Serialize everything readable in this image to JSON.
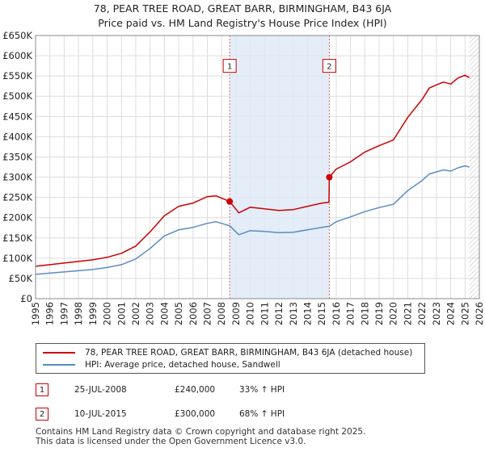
{
  "title_line1": "78, PEAR TREE ROAD, GREAT BARR, BIRMINGHAM, B43 6JA",
  "title_line2": "Price paid vs. HM Land Registry's House Price Index (HPI)",
  "colors": {
    "property": "#cc0000",
    "hpi": "#5b8bc5",
    "event_line": "#e06666",
    "shade": "#dde8f6",
    "grid": "#dddddd"
  },
  "chart_data": {
    "type": "line",
    "xlim": [
      1995,
      2026
    ],
    "ylim": [
      0,
      650000
    ],
    "x_ticks": [
      "1995",
      "1996",
      "1997",
      "1998",
      "1999",
      "2000",
      "2001",
      "2002",
      "2003",
      "2004",
      "2005",
      "2006",
      "2007",
      "2008",
      "2009",
      "2010",
      "2011",
      "2012",
      "2013",
      "2014",
      "2015",
      "2016",
      "2017",
      "2018",
      "2019",
      "2020",
      "2021",
      "2022",
      "2023",
      "2024",
      "2025",
      "2026"
    ],
    "y_ticks": [
      {
        "value": 0,
        "label": "£0"
      },
      {
        "value": 50000,
        "label": "£50K"
      },
      {
        "value": 100000,
        "label": "£100K"
      },
      {
        "value": 150000,
        "label": "£150K"
      },
      {
        "value": 200000,
        "label": "£200K"
      },
      {
        "value": 250000,
        "label": "£250K"
      },
      {
        "value": 300000,
        "label": "£300K"
      },
      {
        "value": 350000,
        "label": "£350K"
      },
      {
        "value": 400000,
        "label": "£400K"
      },
      {
        "value": 450000,
        "label": "£450K"
      },
      {
        "value": 500000,
        "label": "£500K"
      },
      {
        "value": 550000,
        "label": "£550K"
      },
      {
        "value": 600000,
        "label": "£600K"
      },
      {
        "value": 650000,
        "label": "£650K"
      }
    ],
    "series": [
      {
        "name": "78, PEAR TREE ROAD, GREAT BARR, BIRMINGHAM, B43 6JA (detached house)",
        "color": "#cc0000",
        "points": [
          [
            1995.0,
            80000
          ],
          [
            1996.0,
            84000
          ],
          [
            1997.0,
            88000
          ],
          [
            1998.0,
            92000
          ],
          [
            1999.0,
            96000
          ],
          [
            2000.0,
            102000
          ],
          [
            2001.0,
            112000
          ],
          [
            2002.0,
            130000
          ],
          [
            2003.0,
            165000
          ],
          [
            2004.0,
            205000
          ],
          [
            2005.0,
            228000
          ],
          [
            2006.0,
            236000
          ],
          [
            2007.0,
            252000
          ],
          [
            2007.6,
            254000
          ],
          [
            2008.56,
            240000
          ],
          [
            2009.2,
            212000
          ],
          [
            2010.0,
            226000
          ],
          [
            2011.0,
            222000
          ],
          [
            2012.0,
            218000
          ],
          [
            2013.0,
            220000
          ],
          [
            2014.0,
            228000
          ],
          [
            2015.0,
            236000
          ],
          [
            2015.5,
            238000
          ],
          [
            2015.52,
            300000
          ],
          [
            2016.0,
            320000
          ],
          [
            2017.0,
            338000
          ],
          [
            2018.0,
            362000
          ],
          [
            2019.0,
            378000
          ],
          [
            2020.0,
            392000
          ],
          [
            2020.5,
            420000
          ],
          [
            2021.0,
            448000
          ],
          [
            2022.0,
            492000
          ],
          [
            2022.5,
            520000
          ],
          [
            2023.0,
            528000
          ],
          [
            2023.5,
            535000
          ],
          [
            2024.0,
            530000
          ],
          [
            2024.5,
            545000
          ],
          [
            2025.0,
            552000
          ],
          [
            2025.3,
            546000
          ]
        ]
      },
      {
        "name": "HPI: Average price, detached house, Sandwell",
        "color": "#5b8bc5",
        "points": [
          [
            1995.0,
            60000
          ],
          [
            1996.0,
            63000
          ],
          [
            1997.0,
            66000
          ],
          [
            1998.0,
            69000
          ],
          [
            1999.0,
            72000
          ],
          [
            2000.0,
            77000
          ],
          [
            2001.0,
            84000
          ],
          [
            2002.0,
            98000
          ],
          [
            2003.0,
            124000
          ],
          [
            2004.0,
            155000
          ],
          [
            2005.0,
            170000
          ],
          [
            2006.0,
            176000
          ],
          [
            2007.0,
            186000
          ],
          [
            2007.6,
            190000
          ],
          [
            2008.56,
            180000
          ],
          [
            2009.2,
            158000
          ],
          [
            2010.0,
            168000
          ],
          [
            2011.0,
            166000
          ],
          [
            2012.0,
            163000
          ],
          [
            2013.0,
            164000
          ],
          [
            2014.0,
            170000
          ],
          [
            2015.0,
            176000
          ],
          [
            2015.52,
            179000
          ],
          [
            2016.0,
            190000
          ],
          [
            2017.0,
            202000
          ],
          [
            2018.0,
            215000
          ],
          [
            2019.0,
            225000
          ],
          [
            2020.0,
            233000
          ],
          [
            2020.5,
            250000
          ],
          [
            2021.0,
            267000
          ],
          [
            2022.0,
            292000
          ],
          [
            2022.5,
            308000
          ],
          [
            2023.0,
            313000
          ],
          [
            2023.5,
            318000
          ],
          [
            2024.0,
            315000
          ],
          [
            2024.5,
            323000
          ],
          [
            2025.0,
            328000
          ],
          [
            2025.3,
            325000
          ]
        ]
      }
    ],
    "events": [
      {
        "label": "1",
        "x": 2008.56,
        "value": 240000,
        "box_y": 575000
      },
      {
        "label": "2",
        "x": 2015.52,
        "value": 300000,
        "box_y": 575000
      }
    ],
    "shaded_range": [
      2008.56,
      2015.52
    ],
    "hatched_from": 2025.3
  },
  "legend": {
    "property_label": "78, PEAR TREE ROAD, GREAT BARR, BIRMINGHAM, B43 6JA (detached house)",
    "hpi_label": "HPI: Average price, detached house, Sandwell"
  },
  "sales": [
    {
      "num": "1",
      "date": "25-JUL-2008",
      "price": "£240,000",
      "hpi": "33% ↑ HPI"
    },
    {
      "num": "2",
      "date": "10-JUL-2015",
      "price": "£300,000",
      "hpi": "68% ↑ HPI"
    }
  ],
  "footer_line1": "Contains HM Land Registry data © Crown copyright and database right 2025.",
  "footer_line2": "This data is licensed under the Open Government Licence v3.0."
}
